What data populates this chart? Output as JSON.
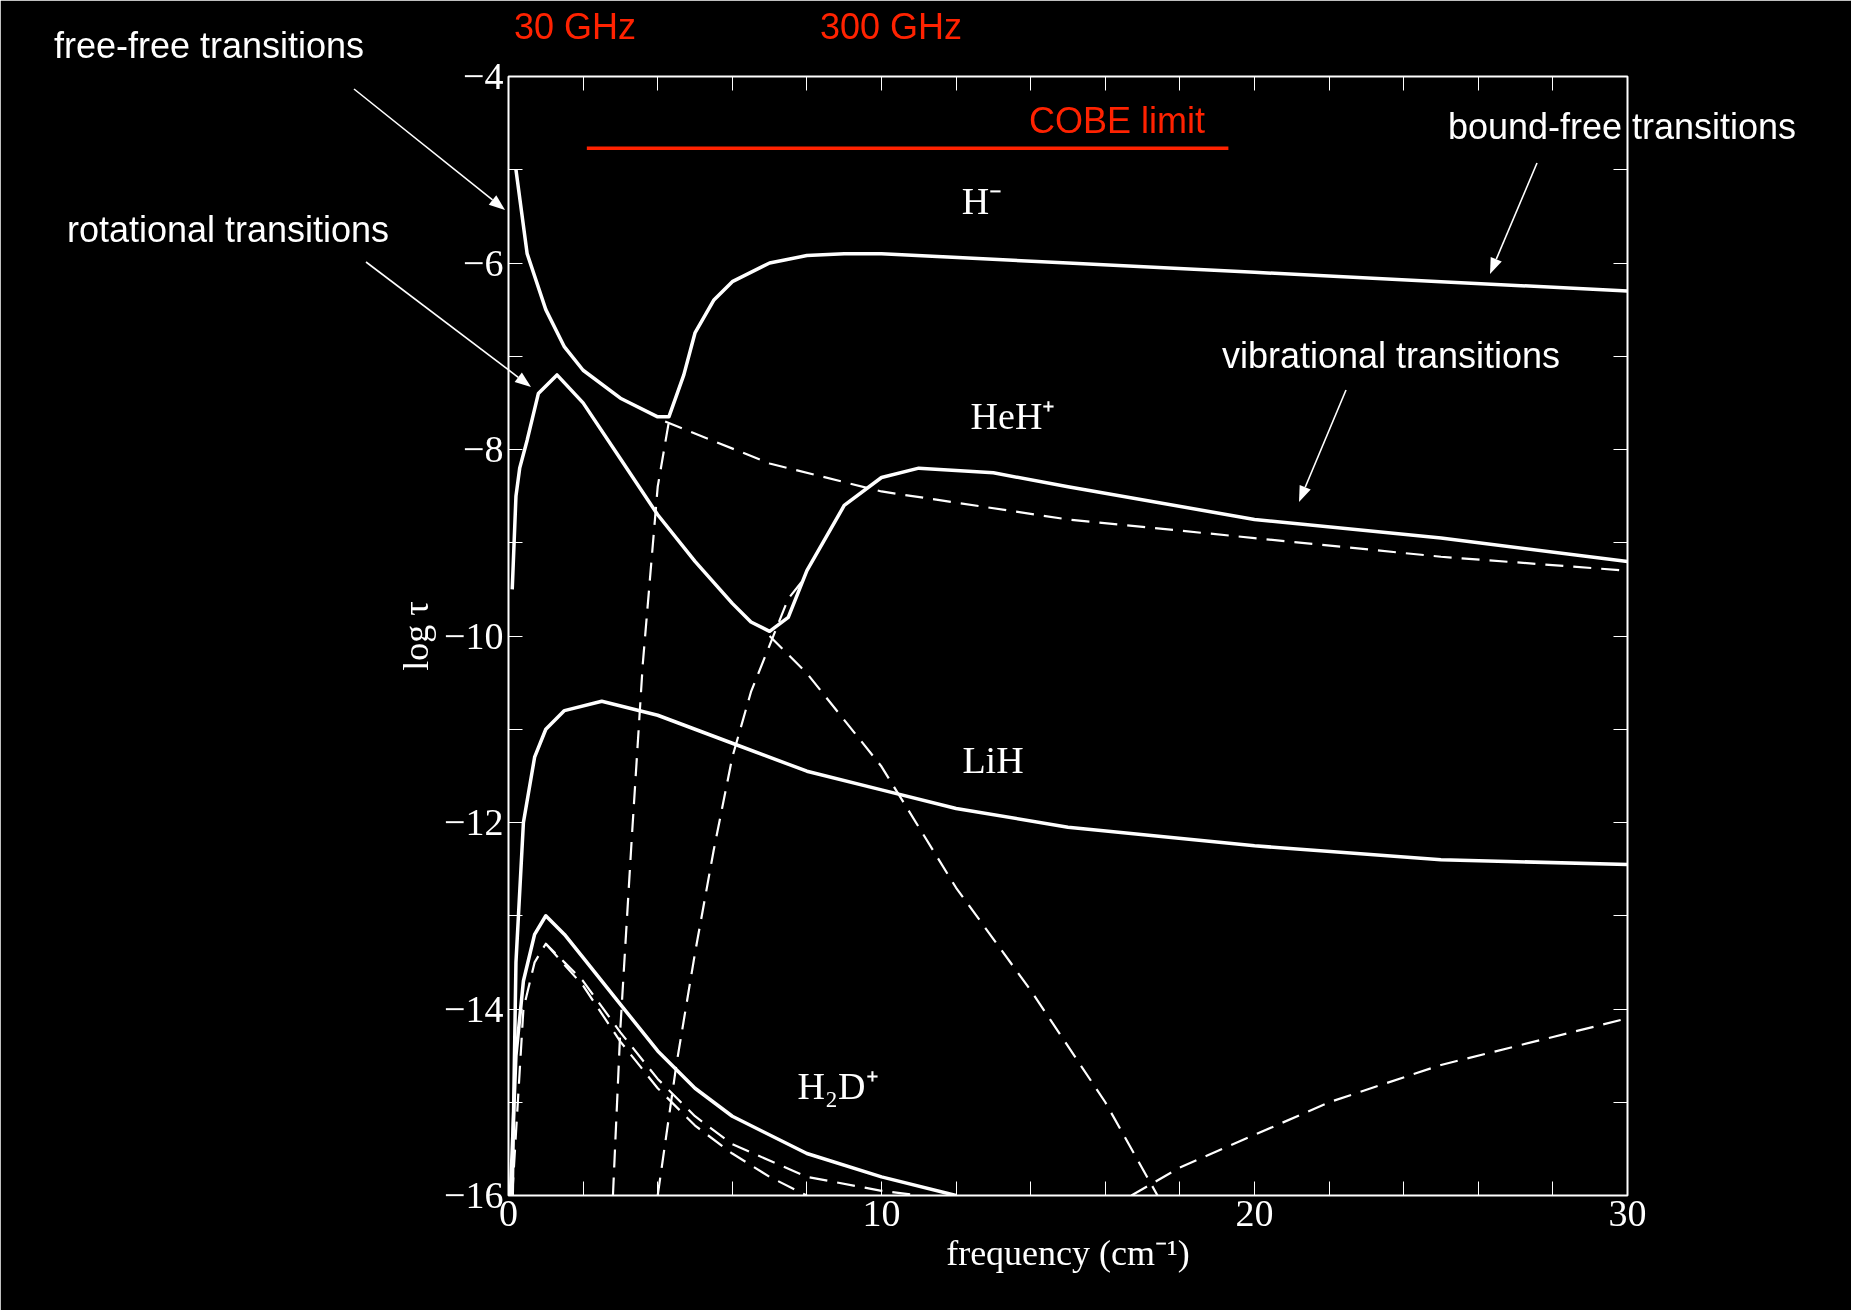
{
  "chart_data": {
    "type": "line",
    "xlabel": "frequency (cm⁻¹)",
    "ylabel": "log τ",
    "xlim": [
      0,
      30
    ],
    "ylim": [
      -16,
      -4
    ],
    "xticks": [
      0,
      {
        "value": 2,
        "label": null
      },
      {
        "value": 4,
        "label": null
      },
      {
        "value": 6,
        "label": null
      },
      {
        "value": 8,
        "label": null
      },
      10,
      {
        "value": 12,
        "label": null
      },
      {
        "value": 14,
        "label": null
      },
      {
        "value": 16,
        "label": null
      },
      {
        "value": 18,
        "label": null
      },
      20,
      {
        "value": 22,
        "label": null
      },
      {
        "value": 24,
        "label": null
      },
      {
        "value": 26,
        "label": null
      },
      {
        "value": 28,
        "label": null
      },
      30
    ],
    "yticks": [
      -16,
      {
        "value": -15,
        "label": null
      },
      -14,
      {
        "value": -13,
        "label": null
      },
      -12,
      {
        "value": -11,
        "label": null
      },
      -10,
      {
        "value": -9,
        "label": null
      },
      -8,
      {
        "value": -7,
        "label": null
      },
      -6,
      {
        "value": -5,
        "label": null
      },
      -4
    ],
    "grid": false,
    "marker": "none",
    "series": [
      {
        "color": "#ffffff",
        "line_style": "solid",
        "x": [
          0.2,
          0.5,
          1,
          1.5,
          2,
          3,
          4,
          4.3,
          4.7,
          5,
          5.5,
          6,
          7,
          8,
          9,
          10,
          15,
          20,
          25,
          30
        ],
        "values": [
          -5.0,
          -5.9,
          -6.5,
          -6.9,
          -7.15,
          -7.45,
          -7.65,
          -7.65,
          -7.2,
          -6.75,
          -6.4,
          -6.2,
          -6.0,
          -5.92,
          -5.9,
          -5.9,
          -6.0,
          -6.1,
          -6.2,
          -6.3
        ]
      },
      {
        "color": "#ffffff",
        "line_style": "dashed",
        "x": [
          4.2,
          7,
          10,
          15,
          20,
          25,
          30
        ],
        "values": [
          -7.7,
          -8.15,
          -8.45,
          -8.75,
          -8.95,
          -9.15,
          -9.3
        ]
      },
      {
        "color": "#ffffff",
        "line_style": "dashed",
        "x": [
          2.8,
          3.0,
          3.3,
          3.6,
          4.0,
          4.3
        ],
        "values": [
          -16,
          -14.2,
          -12.2,
          -10.3,
          -8.4,
          -7.7
        ]
      },
      {
        "color": "#ffffff",
        "line_style": "solid",
        "x": [
          0.1,
          0.2,
          0.3,
          0.5,
          0.8,
          1.3,
          2,
          3,
          4,
          5,
          6,
          6.5,
          7,
          7.5,
          8,
          9,
          10,
          11,
          13,
          15,
          20,
          25,
          30
        ],
        "values": [
          -9.5,
          -8.5,
          -8.2,
          -7.9,
          -7.4,
          -7.2,
          -7.5,
          -8.1,
          -8.7,
          -9.2,
          -9.65,
          -9.85,
          -9.95,
          -9.8,
          -9.3,
          -8.6,
          -8.3,
          -8.2,
          -8.25,
          -8.4,
          -8.75,
          -8.95,
          -9.2
        ]
      },
      {
        "color": "#ffffff",
        "line_style": "dashed",
        "x": [
          7,
          8,
          10,
          12,
          14,
          16,
          17.4
        ],
        "values": [
          -10,
          -10.4,
          -11.4,
          -12.7,
          -13.8,
          -15.0,
          -16
        ]
      },
      {
        "color": "#ffffff",
        "line_style": "dashed",
        "x": [
          4,
          4.5,
          5,
          5.5,
          6,
          6.5,
          7,
          7.5,
          8
        ],
        "values": [
          -16,
          -14.6,
          -13.4,
          -12.3,
          -11.3,
          -10.6,
          -10.1,
          -9.6,
          -9.35
        ]
      },
      {
        "color": "#ffffff",
        "line_style": "solid",
        "x": [
          0.1,
          0.2,
          0.4,
          0.7,
          1,
          1.5,
          2.5,
          4,
          6,
          8,
          10,
          12,
          15,
          20,
          25,
          30
        ],
        "values": [
          -16,
          -13.5,
          -12.0,
          -11.3,
          -11.0,
          -10.8,
          -10.7,
          -10.85,
          -11.15,
          -11.45,
          -11.65,
          -11.85,
          -12.05,
          -12.25,
          -12.4,
          -12.45
        ]
      },
      {
        "color": "#ffffff",
        "line_style": "dashed",
        "x": [
          16.7,
          18,
          20,
          22,
          25,
          28,
          30
        ],
        "values": [
          -16,
          -15.7,
          -15.35,
          -15.0,
          -14.6,
          -14.3,
          -14.1
        ]
      },
      {
        "color": "#ffffff",
        "line_style": "solid",
        "x": [
          0.05,
          0.2,
          0.4,
          0.7,
          1,
          1.5,
          2,
          3,
          4,
          5,
          6,
          8,
          10,
          12
        ],
        "values": [
          -16,
          -14.5,
          -13.7,
          -13.2,
          -13.0,
          -13.2,
          -13.45,
          -13.95,
          -14.45,
          -14.85,
          -15.15,
          -15.55,
          -15.8,
          -16
        ]
      },
      {
        "color": "#ffffff",
        "line_style": "dashed",
        "x": [
          0.1,
          0.4,
          0.7,
          1,
          1.5,
          2,
          3,
          4,
          5,
          6,
          8,
          10,
          11
        ],
        "values": [
          -16,
          -14.0,
          -13.5,
          -13.3,
          -13.5,
          -13.7,
          -14.25,
          -14.75,
          -15.15,
          -15.45,
          -15.8,
          -15.95,
          -16
        ]
      },
      {
        "color": "#ffffff",
        "line_style": "dashed",
        "x": [
          1,
          2,
          3,
          4,
          5,
          6,
          7,
          8
        ],
        "values": [
          -13.3,
          -13.75,
          -14.35,
          -14.85,
          -15.25,
          -15.55,
          -15.8,
          -16
        ]
      },
      {
        "color": "#ff2200",
        "line_style": "solid",
        "x": [
          2.1,
          19.3
        ],
        "values": [
          -4.77,
          -4.77
        ]
      }
    ],
    "annotations": [
      "30 GHz",
      "300 GHz",
      "H⁻",
      "HeH⁺",
      "LiH",
      "H₂D⁺",
      "COBE limit",
      "free-free transitions",
      "rotational transitions",
      "bound-free transitions",
      "vibrational transitions"
    ]
  }
}
